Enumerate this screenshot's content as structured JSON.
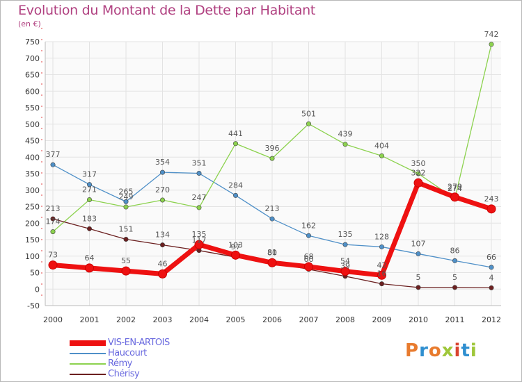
{
  "title": "Evolution du Montant de la Dette par Habitant",
  "unit_label": "(en €)",
  "logo": {
    "text": "Proxiti",
    "colors": [
      "#e87b2e",
      "#2f8fd0",
      "#e87b2e",
      "#9fc73a",
      "#d9432f",
      "#2f8fd0",
      "#9fc73a"
    ]
  },
  "chart_data": {
    "type": "line",
    "title": "Evolution du Montant de la Dette par Habitant",
    "ylabel": "(en €)",
    "xlabel": "",
    "ylim": [
      -50,
      750
    ],
    "yticks": [
      -50,
      0,
      50,
      100,
      150,
      200,
      250,
      300,
      350,
      400,
      450,
      500,
      550,
      600,
      650,
      700,
      750
    ],
    "x": [
      "2000",
      "2001",
      "2002",
      "2003",
      "2004",
      "2005",
      "2006",
      "2007",
      "2008",
      "2009",
      "2010",
      "2011",
      "2012"
    ],
    "grid": true,
    "legend_position": "bottom-left",
    "series": [
      {
        "name": "Haucourt",
        "color": "#4f90c8",
        "values": [
          377,
          317,
          265,
          354,
          351,
          284,
          213,
          162,
          135,
          128,
          107,
          86,
          66
        ]
      },
      {
        "name": "Rémy",
        "color": "#8cd24e",
        "values": [
          174,
          271,
          249,
          270,
          247,
          441,
          396,
          501,
          439,
          404,
          350,
          274,
          742
        ]
      },
      {
        "name": "Chérisy",
        "color": "#6b1f1f",
        "values": [
          213,
          183,
          151,
          134,
          117,
          97,
          81,
          60,
          39,
          16,
          5,
          5,
          4
        ]
      },
      {
        "name": "VIS-EN-ARTOIS",
        "color": "#ee1111",
        "values": [
          73,
          64,
          55,
          46,
          135,
          103,
          80,
          68,
          54,
          42,
          322,
          279,
          243
        ]
      }
    ],
    "legend_order": [
      "VIS-EN-ARTOIS",
      "Haucourt",
      "Rémy",
      "Chérisy"
    ]
  }
}
